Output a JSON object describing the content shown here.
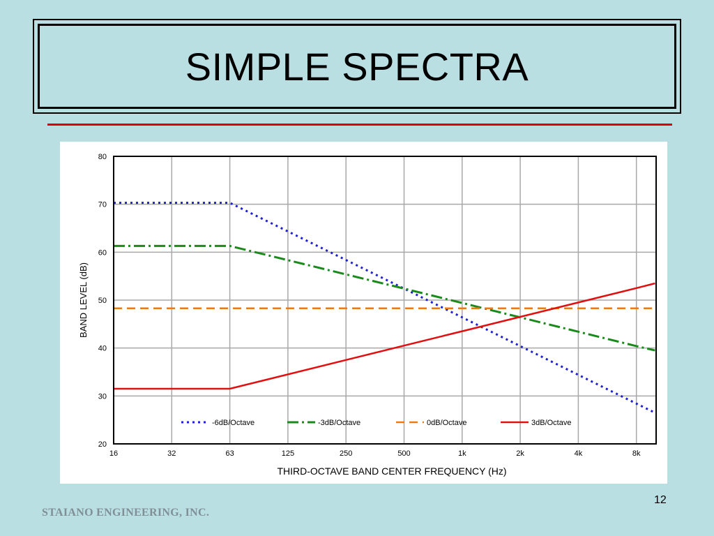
{
  "slide": {
    "title": "SIMPLE SPECTRA",
    "footer": "STAIANO ENGINEERING, INC.",
    "page_number": "12"
  },
  "colors": {
    "background": "#b9dfe3",
    "rule": "#e00000"
  },
  "chart_data": {
    "type": "line",
    "title": "",
    "xlabel": "THIRD-OCTAVE BAND CENTER FREQUENCY (Hz)",
    "ylabel": "BAND LEVEL (dB)",
    "x_scale": "log2 (octaves)",
    "x_ticks": [
      "16",
      "32",
      "63",
      "125",
      "250",
      "500",
      "1k",
      "2k",
      "4k",
      "8k"
    ],
    "ylim": [
      20,
      80
    ],
    "y_ticks": [
      20,
      30,
      40,
      50,
      60,
      70,
      80
    ],
    "grid": true,
    "legend_position": "bottom-inside",
    "series": [
      {
        "name": "-6dB/Octave",
        "color": "#1f1fd6",
        "dash": "dotted",
        "points": [
          [
            16,
            70.3
          ],
          [
            63,
            70.3
          ],
          [
            500,
            52.4
          ],
          [
            1000,
            46.4
          ],
          [
            2000,
            40.4
          ],
          [
            4000,
            34.4
          ],
          [
            8000,
            28.4
          ],
          [
            10000,
            26.5
          ]
        ]
      },
      {
        "name": "-3dB/Octave",
        "color": "#1a8a1a",
        "dash": "dash-dot",
        "points": [
          [
            16,
            61.3
          ],
          [
            63,
            61.3
          ],
          [
            500,
            52.4
          ],
          [
            1000,
            49.4
          ],
          [
            2000,
            46.4
          ],
          [
            4000,
            43.4
          ],
          [
            8000,
            40.4
          ],
          [
            10000,
            39.5
          ]
        ]
      },
      {
        "name": "0dB/Octave",
        "color": "#f07a10",
        "dash": "dashed",
        "points": [
          [
            16,
            48.3
          ],
          [
            10000,
            48.3
          ]
        ]
      },
      {
        "name": "3dB/Octave",
        "color": "#e01010",
        "dash": "solid",
        "points": [
          [
            16,
            31.5
          ],
          [
            63,
            31.5
          ],
          [
            500,
            40.5
          ],
          [
            1000,
            43.5
          ],
          [
            2000,
            46.5
          ],
          [
            4000,
            49.5
          ],
          [
            8000,
            52.5
          ],
          [
            10000,
            53.5
          ]
        ]
      }
    ]
  }
}
